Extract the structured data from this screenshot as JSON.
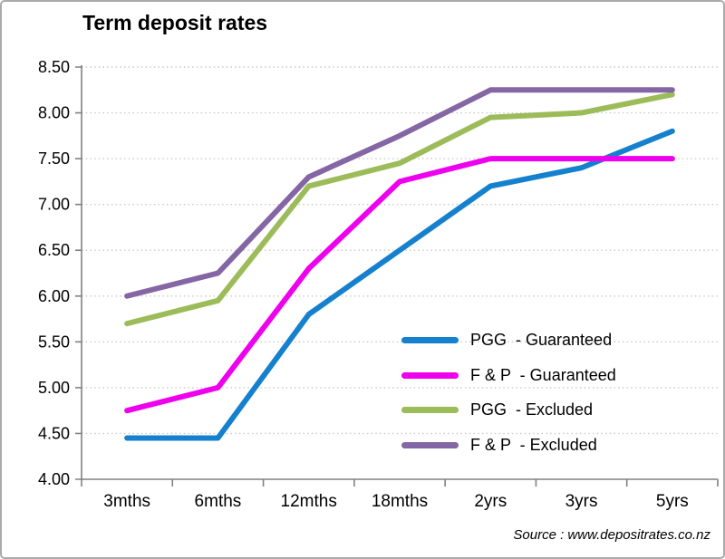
{
  "title": "Term deposit rates",
  "source": "Source : www.depositrates.co.nz",
  "chart_data": {
    "type": "line",
    "title": "Term deposit rates",
    "categories": [
      "3mths",
      "6mths",
      "12mths",
      "18mths",
      "2yrs",
      "3yrs",
      "5yrs"
    ],
    "series": [
      {
        "name": "PGG  - Guaranteed",
        "color": "#1580CD",
        "values": [
          4.45,
          4.45,
          5.8,
          6.5,
          7.2,
          7.4,
          7.8
        ]
      },
      {
        "name": "F & P  - Guaranteed",
        "color": "#EE00EE",
        "values": [
          4.75,
          5.0,
          6.3,
          7.25,
          7.5,
          7.5,
          7.5
        ]
      },
      {
        "name": "PGG  - Excluded",
        "color": "#9CBB59",
        "values": [
          5.7,
          5.95,
          7.2,
          7.45,
          7.95,
          8.0,
          8.2
        ]
      },
      {
        "name": "F & P  - Excluded",
        "color": "#8466A4",
        "values": [
          6.0,
          6.25,
          7.3,
          7.75,
          8.25,
          8.25,
          8.25
        ]
      }
    ],
    "xlabel": "",
    "ylabel": "",
    "ylim": [
      4.0,
      8.5
    ],
    "ytick_step": 0.5,
    "ytick_format": "2dp",
    "grid": "horizontal-dotted",
    "gridlines_at": [
      4.5,
      5.0,
      5.5,
      6.0,
      6.5,
      7.0,
      7.5,
      8.0,
      8.5
    ],
    "legend_position": "inside-right-lower"
  },
  "style_colors": {
    "axis": "#808080",
    "gridline": "#c9c9c9",
    "text": "#000000",
    "frame_border": "#aaaaaa"
  }
}
